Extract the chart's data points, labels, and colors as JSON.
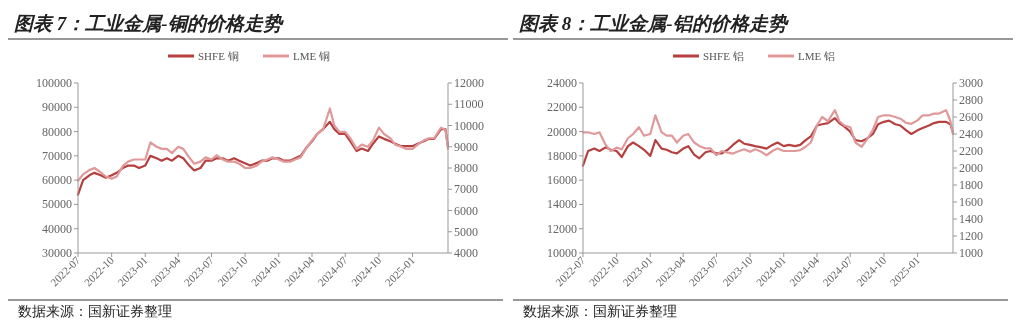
{
  "chart_data": [
    {
      "type": "line",
      "title": "图表 7：工业金属-铜的价格走势",
      "annotations": [
        "数据来源：国新证券整理"
      ],
      "legend": "top",
      "grid": false,
      "x": [
        "2022-07-01",
        "2022-07-15",
        "2022-08-01",
        "2022-08-15",
        "2022-09-01",
        "2022-09-15",
        "2022-10-01",
        "2022-10-15",
        "2022-11-01",
        "2022-11-15",
        "2022-12-01",
        "2022-12-15",
        "2023-01-01",
        "2023-01-15",
        "2023-02-01",
        "2023-02-15",
        "2023-03-01",
        "2023-03-15",
        "2023-04-01",
        "2023-04-15",
        "2023-05-01",
        "2023-05-15",
        "2023-06-01",
        "2023-06-15",
        "2023-07-01",
        "2023-07-15",
        "2023-08-01",
        "2023-08-15",
        "2023-09-01",
        "2023-09-15",
        "2023-10-01",
        "2023-10-15",
        "2023-11-01",
        "2023-11-15",
        "2023-12-01",
        "2023-12-15",
        "2024-01-01",
        "2024-01-15",
        "2024-02-01",
        "2024-02-15",
        "2024-03-01",
        "2024-03-15",
        "2024-04-01",
        "2024-04-15",
        "2024-05-01",
        "2024-05-20",
        "2024-06-01",
        "2024-06-15",
        "2024-07-01",
        "2024-07-15",
        "2024-08-01",
        "2024-08-15",
        "2024-09-01",
        "2024-09-15",
        "2024-10-01",
        "2024-10-15",
        "2024-11-01",
        "2024-11-15",
        "2024-12-01",
        "2024-12-15",
        "2025-01-01",
        "2025-01-15",
        "2025-02-01",
        "2025-02-15",
        "2025-03-01",
        "2025-03-20",
        "2025-04-01",
        "2025-04-08"
      ],
      "xlim": [
        "2022-07-01",
        "2025-04-08"
      ],
      "xticks": [
        "2022-07",
        "2022-10",
        "2023-01",
        "2023-04",
        "2023-07",
        "2023-10",
        "2024-01",
        "2024-04",
        "2024-07",
        "2024-10",
        "2025-01"
      ],
      "ylim": [
        30000,
        100000
      ],
      "yticks": [
        30000,
        40000,
        50000,
        60000,
        70000,
        80000,
        90000,
        100000
      ],
      "y2lim": [
        4000,
        12000
      ],
      "y2ticks": [
        4000,
        5000,
        6000,
        7000,
        8000,
        9000,
        10000,
        11000,
        12000
      ],
      "series": [
        {
          "name": "SHFE 铜",
          "color": "#b5403f",
          "values": [
            54000,
            60000,
            62000,
            63000,
            62000,
            61000,
            62000,
            63000,
            65000,
            66000,
            66000,
            65000,
            66000,
            70000,
            69000,
            68000,
            69000,
            68000,
            70000,
            69000,
            66000,
            64000,
            65000,
            68000,
            68000,
            69000,
            69000,
            68000,
            69000,
            68000,
            67000,
            66000,
            67000,
            68000,
            68000,
            69000,
            69000,
            68000,
            68000,
            69000,
            70000,
            73000,
            76000,
            79000,
            81000,
            84000,
            81000,
            79000,
            79000,
            76000,
            72000,
            73000,
            72000,
            75000,
            78000,
            77000,
            76000,
            75000,
            74000,
            74000,
            74000,
            75000,
            76000,
            77000,
            77000,
            81000,
            81000,
            74000
          ]
        },
        {
          "name": "LME 铜",
          "color": "#e0999a",
          "axis": "y2",
          "values": [
            7400,
            7700,
            7900,
            8000,
            7800,
            7600,
            7500,
            7600,
            8100,
            8300,
            8400,
            8400,
            8400,
            9200,
            9000,
            8900,
            8900,
            8700,
            9000,
            8900,
            8500,
            8200,
            8300,
            8500,
            8400,
            8600,
            8400,
            8300,
            8300,
            8200,
            8000,
            8000,
            8100,
            8300,
            8400,
            8500,
            8400,
            8300,
            8300,
            8400,
            8500,
            8900,
            9300,
            9600,
            9800,
            10800,
            10000,
            9700,
            9700,
            9400,
            8900,
            9100,
            9000,
            9300,
            9900,
            9600,
            9400,
            9100,
            9000,
            8900,
            8900,
            9100,
            9300,
            9400,
            9400,
            9900,
            9800,
            8900
          ]
        }
      ]
    },
    {
      "type": "line",
      "title": "图表 8：工业金属-铝的价格走势",
      "annotations": [
        "数据来源：国新证券整理"
      ],
      "legend": "top",
      "grid": false,
      "x": [
        "2022-07-01",
        "2022-07-15",
        "2022-08-01",
        "2022-08-15",
        "2022-09-01",
        "2022-09-15",
        "2022-10-01",
        "2022-10-15",
        "2022-11-01",
        "2022-11-15",
        "2022-12-01",
        "2022-12-15",
        "2023-01-01",
        "2023-01-15",
        "2023-02-01",
        "2023-02-15",
        "2023-03-01",
        "2023-03-15",
        "2023-04-01",
        "2023-04-15",
        "2023-05-01",
        "2023-05-15",
        "2023-06-01",
        "2023-06-15",
        "2023-07-01",
        "2023-07-15",
        "2023-08-01",
        "2023-08-15",
        "2023-09-01",
        "2023-09-15",
        "2023-10-01",
        "2023-10-15",
        "2023-11-01",
        "2023-11-15",
        "2023-12-01",
        "2023-12-15",
        "2024-01-01",
        "2024-01-15",
        "2024-02-01",
        "2024-02-15",
        "2024-03-01",
        "2024-03-15",
        "2024-04-01",
        "2024-04-15",
        "2024-05-01",
        "2024-05-20",
        "2024-06-01",
        "2024-06-15",
        "2024-07-01",
        "2024-07-15",
        "2024-08-01",
        "2024-08-15",
        "2024-09-01",
        "2024-09-15",
        "2024-10-01",
        "2024-10-15",
        "2024-11-01",
        "2024-11-15",
        "2024-12-01",
        "2024-12-15",
        "2025-01-01",
        "2025-01-15",
        "2025-02-01",
        "2025-02-15",
        "2025-03-01",
        "2025-03-20",
        "2025-04-01",
        "2025-04-08"
      ],
      "xlim": [
        "2022-07-01",
        "2025-04-08"
      ],
      "xticks": [
        "2022-07",
        "2022-10",
        "2023-01",
        "2023-04",
        "2023-07",
        "2023-10",
        "2024-01",
        "2024-04",
        "2024-07",
        "2024-10",
        "2025-01"
      ],
      "ylim": [
        10000,
        24000
      ],
      "yticks": [
        10000,
        12000,
        14000,
        16000,
        18000,
        20000,
        22000,
        24000
      ],
      "y2lim": [
        1000,
        3000
      ],
      "y2ticks": [
        1000,
        1200,
        1400,
        1600,
        1800,
        2000,
        2200,
        2400,
        2600,
        2800,
        3000
      ],
      "series": [
        {
          "name": "SHFE 铝",
          "color": "#b5403f",
          "values": [
            17200,
            18400,
            18600,
            18400,
            18700,
            18500,
            18400,
            17900,
            18800,
            19100,
            18800,
            18500,
            18000,
            19300,
            18600,
            18500,
            18300,
            18200,
            18600,
            18800,
            18100,
            17800,
            18300,
            18400,
            18200,
            18200,
            18500,
            18900,
            19300,
            19000,
            18900,
            18800,
            18700,
            18600,
            18900,
            19100,
            18800,
            18900,
            18800,
            18900,
            19300,
            19600,
            20500,
            20600,
            20700,
            21100,
            20700,
            20400,
            20000,
            19300,
            19200,
            19400,
            19800,
            20600,
            20800,
            20900,
            20600,
            20500,
            20100,
            19800,
            20100,
            20300,
            20500,
            20700,
            20800,
            20800,
            20600,
            19900
          ]
        },
        {
          "name": "LME 铝",
          "color": "#e0999a",
          "axis": "y2",
          "values": [
            2420,
            2420,
            2400,
            2420,
            2270,
            2200,
            2240,
            2220,
            2350,
            2400,
            2480,
            2380,
            2400,
            2620,
            2420,
            2380,
            2380,
            2300,
            2380,
            2400,
            2300,
            2260,
            2230,
            2230,
            2150,
            2200,
            2180,
            2170,
            2200,
            2220,
            2190,
            2220,
            2190,
            2150,
            2200,
            2230,
            2200,
            2200,
            2200,
            2210,
            2250,
            2300,
            2500,
            2600,
            2550,
            2680,
            2550,
            2500,
            2480,
            2300,
            2250,
            2330,
            2450,
            2600,
            2620,
            2620,
            2600,
            2580,
            2530,
            2520,
            2560,
            2620,
            2620,
            2640,
            2640,
            2680,
            2550,
            2400
          ]
        }
      ]
    }
  ]
}
